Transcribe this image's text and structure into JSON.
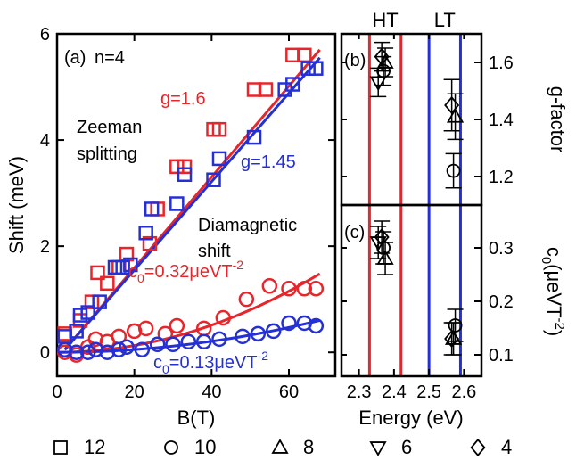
{
  "chart_data": [
    {
      "panel": "(a) n=4",
      "type": "scatter",
      "xlabel": "B(T)",
      "ylabel": "Shift (meV)",
      "xlim": [
        0,
        72
      ],
      "ylim": [
        -0.45,
        6
      ],
      "xticks": [
        "0",
        "20",
        "40",
        "60"
      ],
      "yticks": [
        "0",
        "2",
        "4",
        "6"
      ],
      "panel_label": "(a)",
      "panel_note": "n=4",
      "annotations": {
        "zeeman_1": "Zeeman",
        "zeeman_2": "splitting",
        "diamag_1": "Diamagnetic",
        "diamag_2": "shift",
        "g_red": "g=1.6",
        "g_blue": "g=1.45",
        "c_red_pre": "c",
        "c_red_sub": "0",
        "c_red_val": "=0.32μeVT",
        "c_red_sup": "-2",
        "c_blue_pre": "c",
        "c_blue_sub": "0",
        "c_blue_val": "=0.13μeVT",
        "c_blue_sup": "-2"
      },
      "series": [
        {
          "color": "#e8252a",
          "marker": "square",
          "x": [
            2,
            6,
            9,
            10.5,
            13,
            16,
            18,
            24,
            26,
            31,
            33,
            40.5,
            42,
            51,
            54,
            61,
            64
          ],
          "y": [
            0.35,
            0.6,
            0.95,
            1.5,
            1.3,
            1.6,
            1.85,
            2.05,
            2.7,
            3.5,
            3.5,
            4.2,
            4.2,
            4.95,
            4.95,
            5.6,
            5.6
          ]
        },
        {
          "color": "#2430d6",
          "marker": "square",
          "x": [
            2,
            5,
            6,
            8,
            11,
            15,
            17,
            19,
            23,
            24.5,
            31,
            33,
            40.5,
            42,
            51,
            59,
            61,
            65,
            67
          ],
          "y": [
            0.3,
            0.4,
            0.7,
            0.75,
            0.95,
            1.6,
            1.6,
            1.65,
            2.25,
            2.7,
            2.8,
            3.35,
            3.25,
            3.65,
            4.05,
            4.95,
            5.05,
            5.35,
            5.35
          ]
        },
        {
          "color": "#e8252a",
          "marker": "circle",
          "x": [
            2,
            5,
            8,
            10,
            13,
            16,
            20,
            23,
            28,
            31,
            38,
            43,
            49,
            55,
            60,
            64,
            67
          ],
          "y": [
            0.0,
            -0.05,
            0.1,
            0.25,
            0.2,
            0.3,
            0.4,
            0.45,
            0.35,
            0.5,
            0.45,
            0.65,
            1.0,
            1.25,
            1.2,
            1.2,
            1.2
          ]
        },
        {
          "color": "#2430d6",
          "marker": "circle",
          "x": [
            2,
            5,
            8,
            10,
            13,
            16,
            18,
            22,
            26,
            30,
            34,
            38,
            42,
            48,
            52,
            56,
            60,
            64,
            67
          ],
          "y": [
            0.05,
            0.0,
            0.0,
            0.05,
            0.0,
            0.05,
            0.1,
            0.05,
            0.15,
            0.15,
            0.2,
            0.2,
            0.25,
            0.3,
            0.35,
            0.4,
            0.55,
            0.55,
            0.5
          ]
        }
      ],
      "fits": [
        {
          "color": "#e8252a",
          "type": "zeeman",
          "x": [
            2,
            68
          ],
          "y": [
            0.05,
            5.7
          ]
        },
        {
          "color": "#2430d6",
          "type": "zeeman",
          "x": [
            2,
            68
          ],
          "y": [
            0.05,
            5.55
          ]
        },
        {
          "color": "#e8252a",
          "type": "diamagnetic",
          "c": 0.32
        },
        {
          "color": "#2430d6",
          "type": "diamagnetic",
          "c": 0.13
        }
      ]
    },
    {
      "panel": "(b)",
      "type": "scatter",
      "ylabel": "g-factor",
      "xlim": [
        2.25,
        2.65
      ],
      "ylim": [
        1.1,
        1.7
      ],
      "yticks": [
        "1.2",
        "1.4",
        "1.6"
      ],
      "panel_label": "(b)",
      "points": [
        {
          "marker": "circle",
          "x": 2.37,
          "y": 1.57,
          "err": 0.05
        },
        {
          "marker": "triangle-up",
          "x": 2.375,
          "y": 1.6,
          "err": 0.05
        },
        {
          "marker": "triangle-down",
          "x": 2.355,
          "y": 1.53,
          "err": 0.05
        },
        {
          "marker": "diamond",
          "x": 2.365,
          "y": 1.62,
          "err": 0.05
        },
        {
          "marker": "circle",
          "x": 2.57,
          "y": 1.22,
          "err": 0.06
        },
        {
          "marker": "triangle-up",
          "x": 2.575,
          "y": 1.41,
          "err": 0.08
        },
        {
          "marker": "diamond",
          "x": 2.565,
          "y": 1.45,
          "err": 0.09
        }
      ]
    },
    {
      "panel": "(c)",
      "type": "scatter",
      "xlabel": "Energy (eV)",
      "ylabel_pre": "c",
      "ylabel_sub": "0",
      "ylabel_mid": "(μeVT",
      "ylabel_sup": "-2",
      "ylabel_end": ")",
      "xlim": [
        2.25,
        2.65
      ],
      "ylim": [
        0.06,
        0.38
      ],
      "xticks": [
        "2.3",
        "2.4",
        "2.5",
        "2.6"
      ],
      "yticks": [
        "0.1",
        "0.2",
        "0.3"
      ],
      "panel_label": "(c)",
      "points": [
        {
          "marker": "circle",
          "x": 2.37,
          "y": 0.3,
          "err": 0.03
        },
        {
          "marker": "triangle-up",
          "x": 2.375,
          "y": 0.28,
          "err": 0.03
        },
        {
          "marker": "triangle-down",
          "x": 2.355,
          "y": 0.31,
          "err": 0.03
        },
        {
          "marker": "diamond",
          "x": 2.365,
          "y": 0.32,
          "err": 0.03
        },
        {
          "marker": "circle",
          "x": 2.575,
          "y": 0.155,
          "err": 0.03
        },
        {
          "marker": "triangle-up",
          "x": 2.57,
          "y": 0.13,
          "err": 0.03
        },
        {
          "marker": "diamond",
          "x": 2.565,
          "y": 0.13,
          "err": 0.03
        }
      ]
    }
  ],
  "regions": [
    {
      "label": "HT",
      "color": "#e8252a",
      "x": [
        2.33,
        2.42
      ]
    },
    {
      "label": "LT",
      "color": "#2430d6",
      "x": [
        2.5,
        2.59
      ]
    }
  ],
  "legend": [
    {
      "marker": "square",
      "label": "12"
    },
    {
      "marker": "circle",
      "label": "10"
    },
    {
      "marker": "triangle-up",
      "label": "8"
    },
    {
      "marker": "triangle-down",
      "label": "6"
    },
    {
      "marker": "diamond",
      "label": "4"
    }
  ]
}
